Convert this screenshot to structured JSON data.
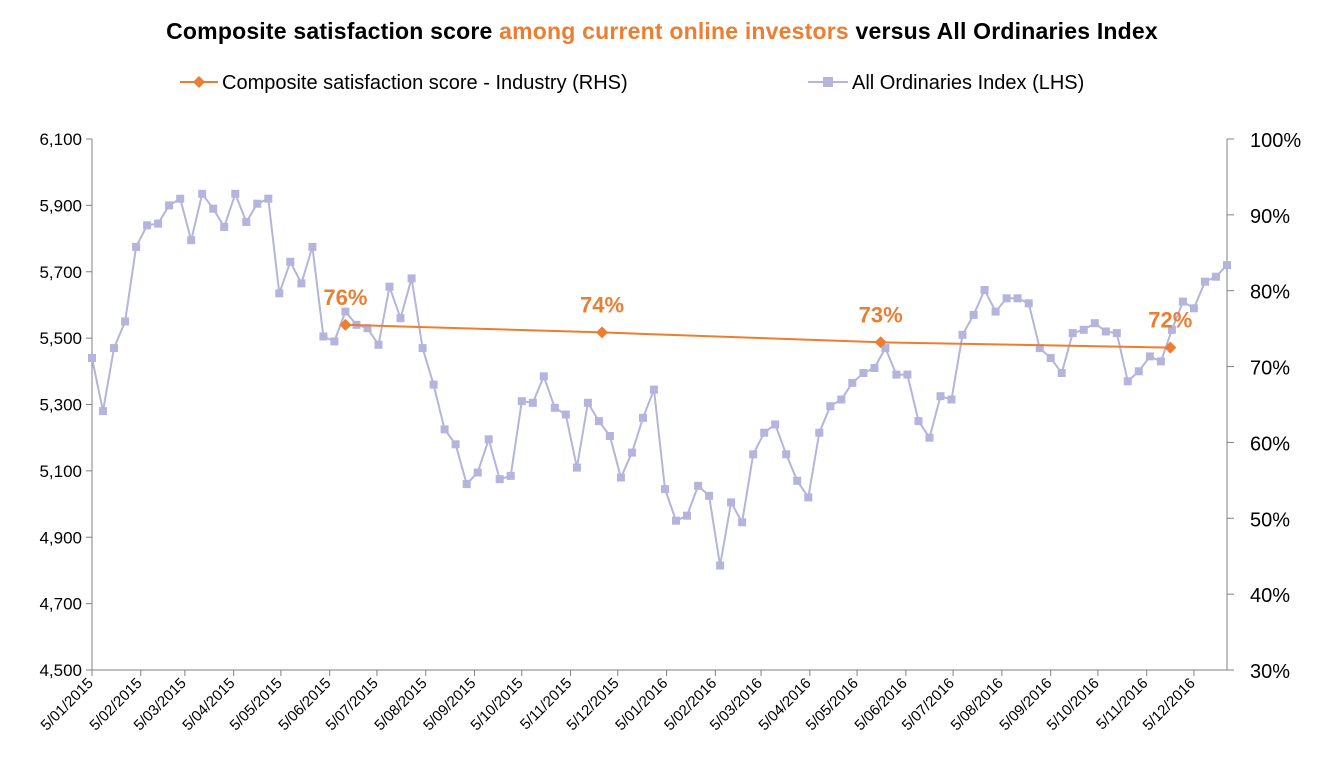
{
  "title": {
    "part1": "Composite satisfaction score ",
    "part2": "among current online investors",
    "part3": " versus All Ordinaries Index"
  },
  "colors": {
    "accent": "#ED7D31",
    "index_series": "#B4B4DC",
    "axis": "#808080"
  },
  "legend": {
    "items": [
      {
        "label": "Composite satisfaction score - Industry (RHS)",
        "marker": "diamond"
      },
      {
        "label": "All Ordinaries Index (LHS)",
        "marker": "square"
      }
    ],
    "placement": "top"
  },
  "chart_data": {
    "type": "line",
    "grid": false,
    "x_axis": {
      "type": "date",
      "range": [
        "2015-01-05",
        "2016-12-26"
      ],
      "tick_labels": [
        "5/01/2015",
        "5/02/2015",
        "5/03/2015",
        "5/04/2015",
        "5/05/2015",
        "5/06/2015",
        "5/07/2015",
        "5/08/2015",
        "5/09/2015",
        "5/10/2015",
        "5/11/2015",
        "5/12/2015",
        "5/01/2016",
        "5/02/2016",
        "5/03/2016",
        "5/04/2016",
        "5/05/2016",
        "5/06/2016",
        "5/07/2016",
        "5/08/2016",
        "5/09/2016",
        "5/10/2016",
        "5/11/2016",
        "5/12/2016"
      ],
      "tick_dates": [
        "2015-01-05",
        "2015-02-05",
        "2015-03-05",
        "2015-04-05",
        "2015-05-05",
        "2015-06-05",
        "2015-07-05",
        "2015-08-05",
        "2015-09-05",
        "2015-10-05",
        "2015-11-05",
        "2015-12-05",
        "2016-01-05",
        "2016-02-05",
        "2016-03-05",
        "2016-04-05",
        "2016-05-05",
        "2016-06-05",
        "2016-07-05",
        "2016-08-05",
        "2016-09-05",
        "2016-10-05",
        "2016-11-05",
        "2016-12-05"
      ]
    },
    "y_left": {
      "min": 4500,
      "max": 6100,
      "ticks": [
        4500,
        4700,
        4900,
        5100,
        5300,
        5500,
        5700,
        5900,
        6100
      ],
      "tick_labels": [
        "4,500",
        "4,700",
        "4,900",
        "5,100",
        "5,300",
        "5,500",
        "5,700",
        "5,900",
        "6,100"
      ]
    },
    "y_right": {
      "min": 30,
      "max": 100,
      "ticks": [
        30,
        40,
        50,
        60,
        70,
        80,
        90,
        100
      ],
      "tick_labels": [
        "30%",
        "40%",
        "50%",
        "60%",
        "70%",
        "80%",
        "90%",
        "100%"
      ]
    },
    "series": [
      {
        "name": "All Ordinaries Index (LHS)",
        "axis": "left",
        "x": [
          "2015-01-05",
          "2015-01-12",
          "2015-01-19",
          "2015-01-26",
          "2015-02-02",
          "2015-02-09",
          "2015-02-16",
          "2015-02-23",
          "2015-03-02",
          "2015-03-09",
          "2015-03-16",
          "2015-03-23",
          "2015-03-30",
          "2015-04-06",
          "2015-04-13",
          "2015-04-20",
          "2015-04-27",
          "2015-05-04",
          "2015-05-11",
          "2015-05-18",
          "2015-05-25",
          "2015-06-01",
          "2015-06-08",
          "2015-06-15",
          "2015-06-22",
          "2015-06-29",
          "2015-07-06",
          "2015-07-13",
          "2015-07-20",
          "2015-07-27",
          "2015-08-03",
          "2015-08-10",
          "2015-08-17",
          "2015-08-24",
          "2015-08-31",
          "2015-09-07",
          "2015-09-14",
          "2015-09-21",
          "2015-09-28",
          "2015-10-05",
          "2015-10-12",
          "2015-10-19",
          "2015-10-26",
          "2015-11-02",
          "2015-11-09",
          "2015-11-16",
          "2015-11-23",
          "2015-11-30",
          "2015-12-07",
          "2015-12-14",
          "2015-12-21",
          "2015-12-28",
          "2016-01-04",
          "2016-01-11",
          "2016-01-18",
          "2016-01-25",
          "2016-02-01",
          "2016-02-08",
          "2016-02-15",
          "2016-02-22",
          "2016-02-29",
          "2016-03-07",
          "2016-03-14",
          "2016-03-21",
          "2016-03-28",
          "2016-04-04",
          "2016-04-11",
          "2016-04-18",
          "2016-04-25",
          "2016-05-02",
          "2016-05-09",
          "2016-05-16",
          "2016-05-23",
          "2016-05-30",
          "2016-06-06",
          "2016-06-13",
          "2016-06-20",
          "2016-06-27",
          "2016-07-04",
          "2016-07-11",
          "2016-07-18",
          "2016-07-25",
          "2016-08-01",
          "2016-08-08",
          "2016-08-15",
          "2016-08-22",
          "2016-08-29",
          "2016-09-05",
          "2016-09-12",
          "2016-09-19",
          "2016-09-26",
          "2016-10-03",
          "2016-10-10",
          "2016-10-17",
          "2016-10-24",
          "2016-10-31",
          "2016-11-07",
          "2016-11-14",
          "2016-11-21",
          "2016-11-28",
          "2016-12-05",
          "2016-12-12",
          "2016-12-19",
          "2016-12-26"
        ],
        "values": [
          5440,
          5280,
          5470,
          5550,
          5775,
          5840,
          5845,
          5900,
          5920,
          5795,
          5935,
          5890,
          5835,
          5935,
          5850,
          5905,
          5920,
          5635,
          5730,
          5665,
          5775,
          5505,
          5490,
          5580,
          5540,
          5530,
          5480,
          5655,
          5560,
          5680,
          5470,
          5360,
          5225,
          5180,
          5060,
          5095,
          5195,
          5075,
          5085,
          5310,
          5305,
          5385,
          5290,
          5270,
          5110,
          5305,
          5250,
          5205,
          5080,
          5155,
          5260,
          5345,
          5045,
          4950,
          4965,
          5055,
          5025,
          4815,
          5005,
          4945,
          5150,
          5215,
          5240,
          5150,
          5070,
          5020,
          5215,
          5295,
          5315,
          5365,
          5395,
          5410,
          5470,
          5390,
          5390,
          5250,
          5200,
          5325,
          5315,
          5510,
          5570,
          5645,
          5580,
          5620,
          5620,
          5605,
          5470,
          5440,
          5395,
          5515,
          5525,
          5545,
          5520,
          5515,
          5370,
          5400,
          5445,
          5430,
          5525,
          5610,
          5590,
          5670,
          5685,
          5720
        ]
      },
      {
        "name": "Composite satisfaction score - Industry (RHS)",
        "axis": "right",
        "x": [
          "2015-06-15",
          "2015-11-25",
          "2016-05-20",
          "2016-11-20"
        ],
        "values": [
          76,
          74,
          73,
          72
        ],
        "point_values": [
          75.5,
          74.5,
          73.2,
          72.5
        ],
        "data_labels": [
          "76%",
          "74%",
          "73%",
          "72%"
        ]
      }
    ]
  }
}
